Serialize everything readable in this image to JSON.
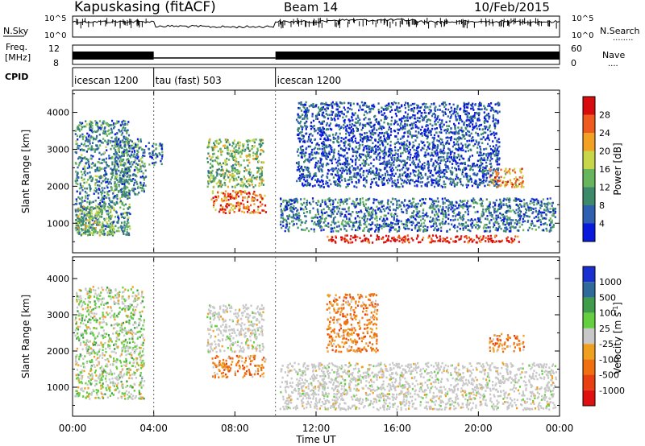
{
  "header": {
    "station": "Kapuskasing (fitACF)",
    "beam": "Beam 14",
    "date": "10/Feb/2015"
  },
  "status_panels": {
    "noise": {
      "left_label": "N.Sky",
      "left_ticks": [
        "10^5",
        "10^0"
      ],
      "right_label": "N.Search",
      "right_ticks": [
        "10^5",
        "10^0"
      ],
      "right_legend_marker": "........"
    },
    "freq": {
      "left_label_1": "Freq.",
      "left_label_2": "[MHz]",
      "left_ticks": [
        "12",
        "8"
      ],
      "right_label": "Nave",
      "right_ticks": [
        "60",
        "0"
      ],
      "right_legend_marker": "...."
    },
    "cpid": {
      "label": "CPID",
      "segments": [
        {
          "name": "icescan 1200",
          "start_h": 0,
          "end_h": 4
        },
        {
          "name": "tau (fast) 503",
          "start_h": 4,
          "end_h": 10
        },
        {
          "name": "icescan 1200",
          "start_h": 10,
          "end_h": 24
        }
      ]
    }
  },
  "chart_data": [
    {
      "type": "heatmap",
      "name": "power",
      "ylabel": "Slant Range [km]",
      "ylim": [
        200,
        4600
      ],
      "yticks": [
        1000,
        2000,
        3000,
        4000
      ],
      "xlim": [
        0,
        24
      ],
      "colorbar": {
        "label": "Power [dB]",
        "ticks": [
          "4",
          "8",
          "12",
          "16",
          "20",
          "24",
          "28"
        ],
        "colors": [
          "#0a1adc",
          "#2e5fb0",
          "#3c8a6a",
          "#67b55c",
          "#c8d64a",
          "#f2a125",
          "#ef5a1e",
          "#d80c0c"
        ]
      },
      "scatter_regions": [
        {
          "t0": 0.1,
          "t1": 2.8,
          "r0": 700,
          "r1": 3800,
          "level": 0.3
        },
        {
          "t0": 0.2,
          "t1": 2.0,
          "r0": 700,
          "r1": 1500,
          "level": 0.45
        },
        {
          "t0": 2.0,
          "t1": 3.6,
          "r0": 1800,
          "r1": 3300,
          "level": 0.3
        },
        {
          "t0": 3.7,
          "t1": 4.4,
          "r0": 2600,
          "r1": 3200,
          "level": 0.25
        },
        {
          "t0": 6.8,
          "t1": 9.5,
          "r0": 1300,
          "r1": 1900,
          "level": 0.8
        },
        {
          "t0": 6.6,
          "t1": 9.4,
          "r0": 2000,
          "r1": 3300,
          "level": 0.45
        },
        {
          "t0": 10.2,
          "t1": 23.8,
          "r0": 800,
          "r1": 1700,
          "level": 0.25
        },
        {
          "t0": 12.5,
          "t1": 22.0,
          "r0": 500,
          "r1": 700,
          "level": 0.95
        },
        {
          "t0": 11.0,
          "t1": 21.0,
          "r0": 2000,
          "r1": 4300,
          "level": 0.15
        },
        {
          "t0": 20.5,
          "t1": 22.2,
          "r0": 2000,
          "r1": 2500,
          "level": 0.7
        }
      ]
    },
    {
      "type": "heatmap",
      "name": "velocity",
      "ylabel": "Slant Range [km]",
      "ylim": [
        200,
        4600
      ],
      "yticks": [
        1000,
        2000,
        3000,
        4000
      ],
      "xlim": [
        0,
        24
      ],
      "xticks": [
        "00:00",
        "04:00",
        "08:00",
        "12:00",
        "16:00",
        "20:00",
        "00:00"
      ],
      "xlabel": "Time UT",
      "colorbar": {
        "label": "Velocity [m s",
        "label_sup": "-1",
        "label_end": "]",
        "ticks": [
          "1000",
          "500",
          "100",
          "25",
          "-25",
          "-100",
          "-500",
          "-1000"
        ],
        "colors": [
          "#1a2fd0",
          "#2e6a9a",
          "#3f9c4a",
          "#64d040",
          "#c8c8c8",
          "#f0a020",
          "#f07010",
          "#e84010",
          "#e01010"
        ]
      },
      "scatter_regions": [
        {
          "t0": 0.1,
          "t1": 3.5,
          "r0": 700,
          "r1": 3800,
          "vel": "mixed"
        },
        {
          "t0": 6.8,
          "t1": 9.5,
          "r0": 1300,
          "r1": 1900,
          "vel": "negative"
        },
        {
          "t0": 6.6,
          "t1": 9.4,
          "r0": 2000,
          "r1": 3300,
          "vel": "gray"
        },
        {
          "t0": 10.2,
          "t1": 23.8,
          "r0": 400,
          "r1": 1700,
          "vel": "gray"
        },
        {
          "t0": 12.5,
          "t1": 15.0,
          "r0": 2000,
          "r1": 3600,
          "vel": "negative"
        },
        {
          "t0": 20.5,
          "t1": 22.2,
          "r0": 2000,
          "r1": 2500,
          "vel": "negative"
        }
      ]
    }
  ]
}
